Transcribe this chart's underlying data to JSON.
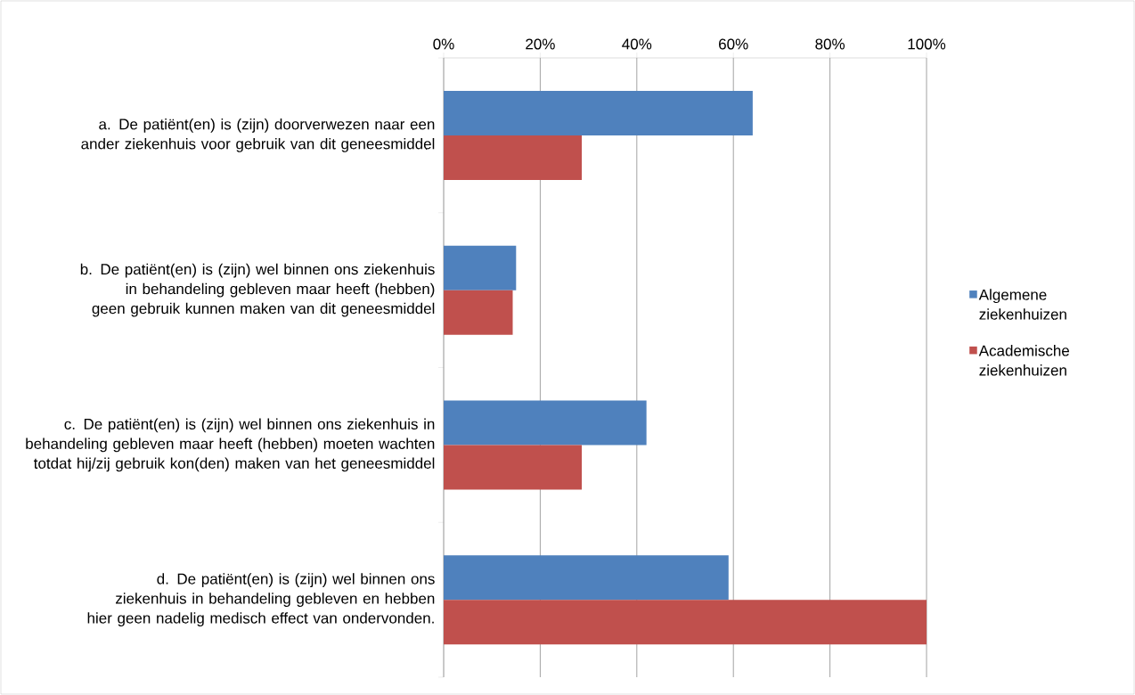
{
  "chart_data": {
    "type": "bar",
    "orientation": "horizontal",
    "categories": [
      "a.  De patiënt(en) is (zijn) doorverwezen naar een ander ziekenhuis voor gebruik van dit geneesmiddel",
      "b.  De patiënt(en) is (zijn) wel binnen ons ziekenhuis in behandeling gebleven maar heeft (hebben) geen gebruik kunnen maken van dit geneesmiddel",
      "c.  De patiënt(en) is (zijn) wel binnen ons ziekenhuis in behandeling gebleven maar heeft (hebben) moeten wachten totdat hij/zij gebruik kon(den) maken van het geneesmiddel",
      "d.  De patiënt(en) is (zijn) wel binnen ons ziekenhuis in behandeling gebleven en hebben hier geen nadelig medisch effect van ondervonden."
    ],
    "series": [
      {
        "name": "Algemene ziekenhuizen",
        "color": "#4f81bd",
        "values": [
          64,
          15,
          42,
          59
        ]
      },
      {
        "name": "Academische ziekenhuizen",
        "color": "#c0504d",
        "values": [
          28.6,
          14.3,
          28.6,
          100
        ]
      }
    ],
    "xlim": [
      0,
      100
    ],
    "xticks": [
      {
        "value": 0,
        "label": "0%"
      },
      {
        "value": 20,
        "label": "20%"
      },
      {
        "value": 40,
        "label": "40%"
      },
      {
        "value": 60,
        "label": "60%"
      },
      {
        "value": 80,
        "label": "80%"
      },
      {
        "value": 100,
        "label": "100%"
      }
    ],
    "grid": "x",
    "legend": "right"
  }
}
